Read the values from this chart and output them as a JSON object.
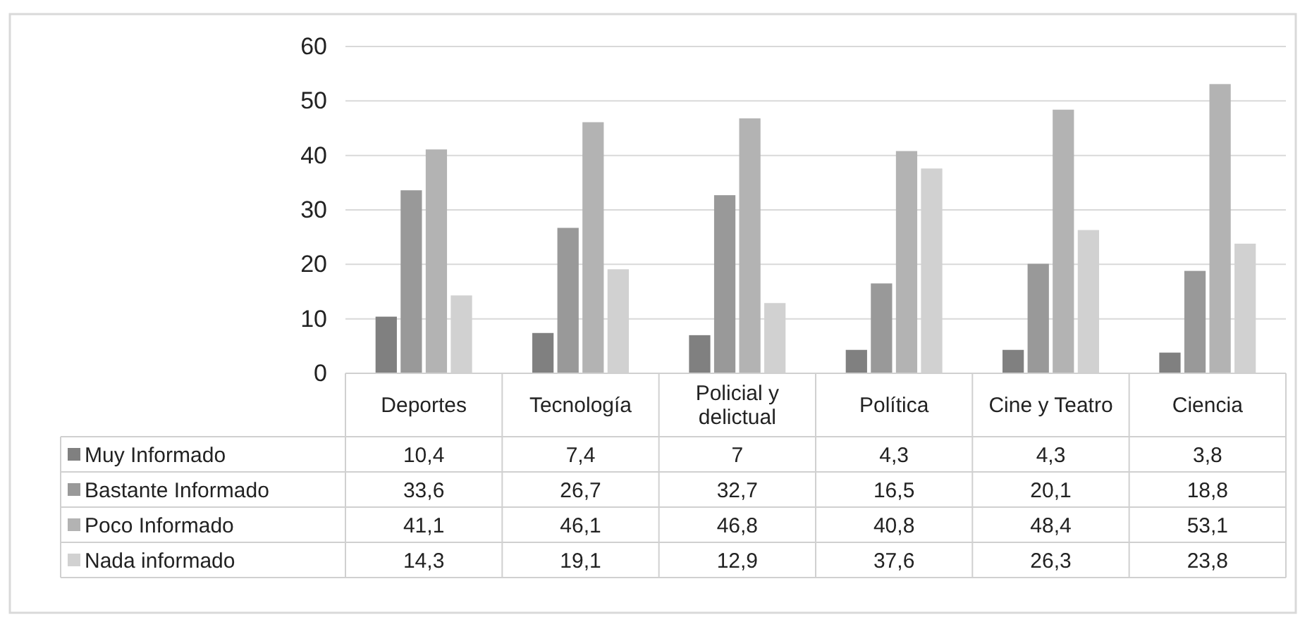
{
  "chart_data": {
    "type": "bar",
    "categories": [
      "Deportes",
      "Tecnología",
      "Policial y delictual",
      "Política",
      "Cine y Teatro",
      "Ciencia"
    ],
    "series": [
      {
        "name": "Muy Informado",
        "color": "#808080",
        "values": [
          10.4,
          7.4,
          7,
          4.3,
          4.3,
          3.8
        ],
        "value_labels": [
          "10,4",
          "7,4",
          "7",
          "4,3",
          "4,3",
          "3,8"
        ]
      },
      {
        "name": "Bastante Informado",
        "color": "#999999",
        "values": [
          33.6,
          26.7,
          32.7,
          16.5,
          20.1,
          18.8
        ],
        "value_labels": [
          "33,6",
          "26,7",
          "32,7",
          "16,5",
          "20,1",
          "18,8"
        ]
      },
      {
        "name": "Poco Informado",
        "color": "#b3b3b3",
        "values": [
          41.1,
          46.1,
          46.8,
          40.8,
          48.4,
          53.1
        ],
        "value_labels": [
          "41,1",
          "46,1",
          "46,8",
          "40,8",
          "48,4",
          "53,1"
        ]
      },
      {
        "name": "Nada informado",
        "color": "#d1d1d1",
        "values": [
          14.3,
          19.1,
          12.9,
          37.6,
          26.3,
          23.8
        ],
        "value_labels": [
          "14,3",
          "19,1",
          "12,9",
          "37,6",
          "26,3",
          "23,8"
        ]
      }
    ],
    "ylim": [
      0,
      60
    ],
    "yticks": [
      0,
      10,
      20,
      30,
      40,
      50,
      60
    ],
    "grid": "y",
    "legend": "bottom left"
  }
}
